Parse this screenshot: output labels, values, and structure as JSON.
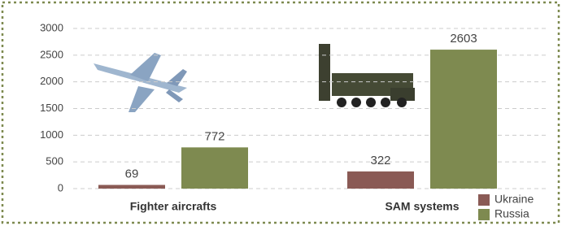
{
  "chart_data": {
    "type": "bar",
    "categories": [
      "Fighter aircrafts",
      "SAM systems"
    ],
    "series": [
      {
        "name": "Ukraine",
        "color": "#8a5a55",
        "values": [
          69,
          322
        ]
      },
      {
        "name": "Russia",
        "color": "#7e8a50",
        "values": [
          772,
          2603
        ]
      }
    ],
    "ylim": [
      0,
      3000
    ],
    "yticks": [
      0,
      500,
      1000,
      1500,
      2000,
      2500,
      3000
    ],
    "grid": true,
    "legend": "bottom-right"
  }
}
